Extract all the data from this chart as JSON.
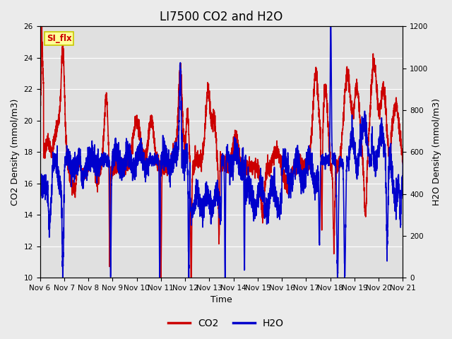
{
  "title": "LI7500 CO2 and H2O",
  "xlabel": "Time",
  "ylabel_left": "CO2 Density (mmol/m3)",
  "ylabel_right": "H2O Density (mmol/m3)",
  "xlim": [
    0,
    15
  ],
  "ylim_left": [
    10,
    26
  ],
  "ylim_right": [
    0,
    1200
  ],
  "x_ticks": [
    0,
    1,
    2,
    3,
    4,
    5,
    6,
    7,
    8,
    9,
    10,
    11,
    12,
    13,
    14,
    15
  ],
  "x_tick_labels": [
    "Nov 6",
    "Nov 7",
    "Nov 8",
    "Nov 9",
    "Nov 10",
    "Nov 11",
    "Nov 12",
    "Nov 13",
    "Nov 14",
    "Nov 15",
    "Nov 16",
    "Nov 17",
    "Nov 18",
    "Nov 19",
    "Nov 20",
    "Nov 21"
  ],
  "y_ticks_left": [
    10,
    12,
    14,
    16,
    18,
    20,
    22,
    24,
    26
  ],
  "y_ticks_right": [
    0,
    200,
    400,
    600,
    800,
    1000,
    1200
  ],
  "co2_color": "#cc0000",
  "h2o_color": "#0000cc",
  "fig_bg_color": "#ebebeb",
  "axes_bg_color": "#e0e0e0",
  "grid_color": "#ffffff",
  "annotation_text": "SI_flx",
  "annotation_bg": "#ffff99",
  "annotation_border": "#c8c800",
  "annotation_text_color": "#cc0000",
  "legend_co2": "CO2",
  "legend_h2o": "H2O",
  "title_fontsize": 12,
  "axis_label_fontsize": 9,
  "tick_fontsize": 7.5,
  "linewidth": 1.2
}
